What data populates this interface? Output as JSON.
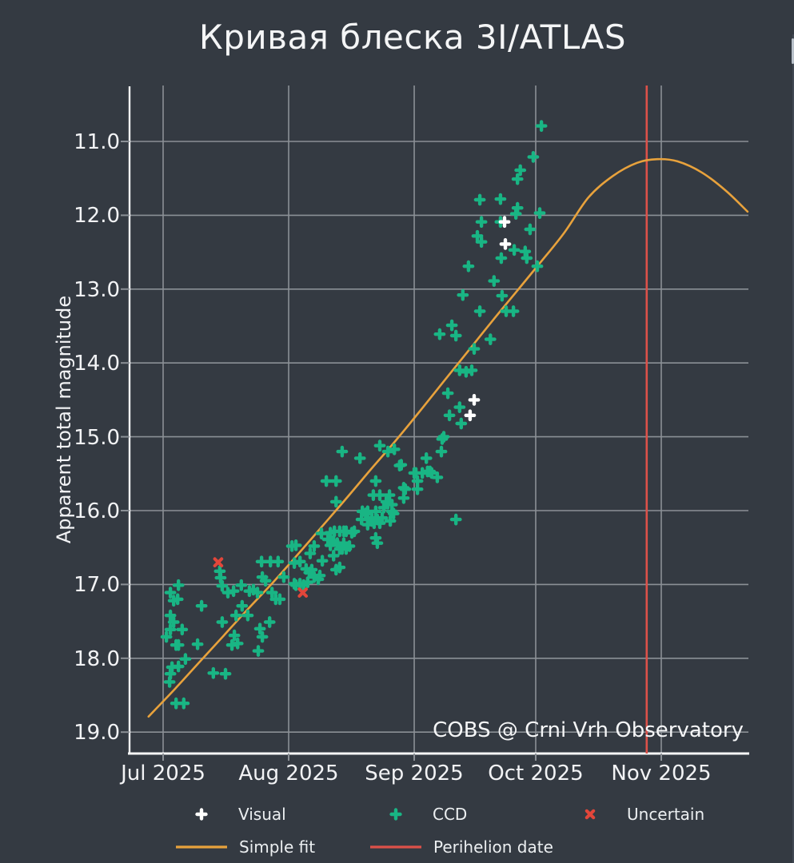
{
  "title": "Кривая блеска 3I/ATLAS",
  "annotation": "COBS @ Crni Vrh Observatory",
  "axes": {
    "y_label": "Apparent total magnitude",
    "y_ticks": [
      "11.0",
      "12.0",
      "13.0",
      "14.0",
      "15.0",
      "16.0",
      "17.0",
      "18.0",
      "19.0"
    ],
    "x_ticks": [
      "Jul 2025",
      "Aug 2025",
      "Sep 2025",
      "Oct 2025",
      "Nov 2025"
    ]
  },
  "legend": {
    "visual_label": "Visual",
    "ccd_label": "CCD",
    "uncertain_label": "Uncertain",
    "fit_label": "Simple fit",
    "perihelion_label": "Perihelion date"
  },
  "colors": {
    "background": "#343a42",
    "grid": "#8b9096",
    "spine": "#f5f6f7",
    "text": "#f2f3f5",
    "ccd": "#19b584",
    "visual": "#ffffff",
    "uncertain": "#e2463a",
    "fit": "#e8a23c",
    "perihelion": "#dd5149"
  },
  "chart_data": {
    "type": "scatter",
    "title": "Кривая блеска 3I/ATLAS",
    "xlabel": "",
    "ylabel": "Apparent total magnitude",
    "x_unit": "days since 2025-07-01",
    "x_tick_days": [
      0,
      31,
      62,
      92,
      123
    ],
    "x_tick_labels": [
      "Jul 2025",
      "Aug 2025",
      "Sep 2025",
      "Oct 2025",
      "Nov 2025"
    ],
    "xlim": [
      -8.3,
      144.5
    ],
    "ylim": [
      19.3,
      10.1
    ],
    "y_inverted": true,
    "grid": true,
    "legend_position": "bottom",
    "series": [
      {
        "name": "CCD",
        "type": "scatter",
        "marker": "plus",
        "color": "#19b584",
        "points": [
          [
            0.8,
            17.71
          ],
          [
            1.6,
            18.32
          ],
          [
            1.8,
            17.11
          ],
          [
            1.8,
            17.42
          ],
          [
            1.8,
            17.61
          ],
          [
            1.8,
            18.21
          ],
          [
            2.2,
            18.12
          ],
          [
            2.6,
            17.22
          ],
          [
            2.6,
            17.51
          ],
          [
            3.2,
            17.82
          ],
          [
            3.2,
            18.61
          ],
          [
            3.6,
            17.2
          ],
          [
            3.8,
            17.01
          ],
          [
            3.8,
            17.82
          ],
          [
            3.8,
            18.11
          ],
          [
            4.7,
            17.61
          ],
          [
            5.1,
            18.61
          ],
          [
            5.5,
            18.01
          ],
          [
            8.5,
            17.81
          ],
          [
            9.5,
            17.29
          ],
          [
            12.4,
            18.2
          ],
          [
            14.0,
            16.82
          ],
          [
            14.2,
            16.91
          ],
          [
            14.6,
            17.02
          ],
          [
            14.6,
            17.51
          ],
          [
            15.4,
            18.21
          ],
          [
            16.0,
            17.11
          ],
          [
            17.0,
            17.82
          ],
          [
            17.4,
            17.09
          ],
          [
            17.6,
            17.69
          ],
          [
            18.0,
            17.42
          ],
          [
            18.4,
            17.8
          ],
          [
            19.3,
            17.01
          ],
          [
            19.5,
            17.29
          ],
          [
            20.9,
            17.42
          ],
          [
            21.3,
            17.09
          ],
          [
            22.3,
            17.07
          ],
          [
            23.3,
            17.11
          ],
          [
            23.5,
            17.9
          ],
          [
            23.9,
            17.6
          ],
          [
            24.3,
            16.69
          ],
          [
            24.5,
            16.9
          ],
          [
            24.5,
            17.71
          ],
          [
            25.3,
            16.95
          ],
          [
            26.3,
            17.51
          ],
          [
            26.5,
            16.69
          ],
          [
            26.9,
            17.11
          ],
          [
            27.8,
            17.2
          ],
          [
            28.4,
            16.69
          ],
          [
            28.8,
            17.2
          ],
          [
            29.8,
            16.9
          ],
          [
            31.8,
            16.48
          ],
          [
            32.4,
            16.71
          ],
          [
            32.4,
            16.99
          ],
          [
            32.8,
            16.47
          ],
          [
            32.8,
            17.01
          ],
          [
            33.8,
            16.69
          ],
          [
            33.8,
            16.99
          ],
          [
            34.7,
            17.01
          ],
          [
            35.3,
            16.79
          ],
          [
            35.7,
            16.97
          ],
          [
            36.1,
            16.84
          ],
          [
            36.3,
            16.58
          ],
          [
            36.7,
            16.8
          ],
          [
            37.3,
            16.48
          ],
          [
            37.3,
            16.9
          ],
          [
            38.3,
            16.93
          ],
          [
            38.7,
            16.88
          ],
          [
            39.1,
            16.31
          ],
          [
            39.3,
            16.68
          ],
          [
            40.3,
            15.6
          ],
          [
            40.7,
            16.39
          ],
          [
            41.3,
            16.3
          ],
          [
            41.3,
            16.47
          ],
          [
            42.1,
            16.41
          ],
          [
            42.1,
            16.61
          ],
          [
            42.3,
            16.28
          ],
          [
            42.7,
            15.6
          ],
          [
            42.7,
            15.88
          ],
          [
            42.7,
            16.8
          ],
          [
            43.0,
            16.44
          ],
          [
            43.6,
            16.28
          ],
          [
            43.6,
            16.52
          ],
          [
            43.6,
            16.77
          ],
          [
            44.2,
            15.2
          ],
          [
            44.2,
            16.52
          ],
          [
            44.6,
            16.28
          ],
          [
            44.6,
            16.44
          ],
          [
            45.2,
            16.28
          ],
          [
            45.2,
            16.52
          ],
          [
            46.0,
            16.48
          ],
          [
            46.6,
            16.3
          ],
          [
            47.2,
            16.28
          ],
          [
            48.6,
            15.29
          ],
          [
            49.0,
            16.12
          ],
          [
            49.2,
            16.01
          ],
          [
            50.0,
            16.04
          ],
          [
            50.5,
            16.01
          ],
          [
            50.5,
            16.19
          ],
          [
            51.5,
            16.1
          ],
          [
            51.5,
            16.14
          ],
          [
            51.9,
            15.79
          ],
          [
            52.1,
            16.17
          ],
          [
            52.5,
            15.6
          ],
          [
            52.5,
            16.01
          ],
          [
            52.5,
            16.37
          ],
          [
            52.9,
            16.12
          ],
          [
            52.9,
            16.44
          ],
          [
            53.5,
            15.12
          ],
          [
            53.5,
            15.79
          ],
          [
            53.5,
            16.17
          ],
          [
            54.1,
            16.1
          ],
          [
            54.5,
            15.96
          ],
          [
            55.1,
            15.88
          ],
          [
            55.5,
            15.2
          ],
          [
            55.9,
            15.79
          ],
          [
            56.1,
            16.14
          ],
          [
            56.5,
            15.92
          ],
          [
            56.5,
            16.01
          ],
          [
            56.9,
            16.04
          ],
          [
            57.1,
            15.17
          ],
          [
            58.4,
            15.39
          ],
          [
            58.8,
            15.38
          ],
          [
            59.4,
            15.69
          ],
          [
            59.4,
            15.83
          ],
          [
            59.8,
            15.71
          ],
          [
            62.0,
            15.49
          ],
          [
            62.4,
            15.49
          ],
          [
            62.8,
            15.6
          ],
          [
            62.8,
            15.71
          ],
          [
            64.0,
            15.49
          ],
          [
            65.0,
            15.29
          ],
          [
            65.3,
            15.47
          ],
          [
            65.9,
            15.47
          ],
          [
            66.3,
            15.49
          ],
          [
            67.7,
            15.55
          ],
          [
            68.3,
            13.61
          ],
          [
            68.7,
            15.2
          ],
          [
            68.9,
            15.03
          ],
          [
            69.3,
            15.0
          ],
          [
            70.3,
            14.41
          ],
          [
            70.7,
            14.71
          ],
          [
            71.3,
            13.49
          ],
          [
            72.3,
            13.63
          ],
          [
            72.3,
            16.12
          ],
          [
            73.2,
            14.1
          ],
          [
            73.2,
            14.6
          ],
          [
            73.6,
            14.82
          ],
          [
            74.0,
            13.08
          ],
          [
            74.8,
            14.12
          ],
          [
            75.4,
            12.69
          ],
          [
            76.2,
            14.1
          ],
          [
            76.8,
            13.81
          ],
          [
            77.6,
            12.28
          ],
          [
            78.2,
            11.79
          ],
          [
            78.2,
            13.3
          ],
          [
            78.6,
            12.09
          ],
          [
            78.6,
            12.36
          ],
          [
            80.8,
            13.68
          ],
          [
            81.7,
            12.89
          ],
          [
            83.3,
            11.78
          ],
          [
            83.3,
            12.09
          ],
          [
            83.5,
            12.58
          ],
          [
            83.7,
            13.09
          ],
          [
            84.7,
            13.3
          ],
          [
            86.5,
            13.3
          ],
          [
            86.7,
            12.47
          ],
          [
            87.1,
            11.98
          ],
          [
            87.5,
            11.51
          ],
          [
            87.5,
            11.9
          ],
          [
            88.2,
            11.39
          ],
          [
            89.4,
            12.49
          ],
          [
            89.8,
            12.58
          ],
          [
            90.6,
            12.19
          ],
          [
            91.4,
            11.21
          ],
          [
            92.4,
            12.69
          ],
          [
            93.0,
            11.97
          ],
          [
            93.4,
            10.79
          ]
        ]
      },
      {
        "name": "Visual",
        "type": "scatter",
        "marker": "plus",
        "color": "#ffffff",
        "points": [
          [
            75.8,
            14.71
          ],
          [
            76.8,
            14.5
          ],
          [
            84.3,
            12.09
          ],
          [
            84.5,
            12.39
          ]
        ]
      },
      {
        "name": "Uncertain",
        "type": "scatter",
        "marker": "x",
        "color": "#e2463a",
        "points": [
          [
            13.6,
            16.7
          ],
          [
            34.5,
            17.11
          ]
        ]
      },
      {
        "name": "Simple fit",
        "type": "line",
        "color": "#e8a23c",
        "points": [
          [
            -3.6,
            18.79
          ],
          [
            3,
            18.41
          ],
          [
            9,
            18.05
          ],
          [
            15,
            17.69
          ],
          [
            21,
            17.33
          ],
          [
            27,
            16.98
          ],
          [
            33,
            16.61
          ],
          [
            39,
            16.23
          ],
          [
            45,
            15.85
          ],
          [
            51,
            15.46
          ],
          [
            57,
            15.08
          ],
          [
            63,
            14.68
          ],
          [
            69,
            14.27
          ],
          [
            75,
            13.86
          ],
          [
            81,
            13.45
          ],
          [
            87,
            13.05
          ],
          [
            93,
            12.65
          ],
          [
            99,
            12.24
          ],
          [
            105,
            11.76
          ],
          [
            111,
            11.47
          ],
          [
            117,
            11.29
          ],
          [
            122,
            11.24
          ],
          [
            127,
            11.27
          ],
          [
            133,
            11.42
          ],
          [
            139,
            11.67
          ],
          [
            144.3,
            11.95
          ]
        ]
      },
      {
        "name": "Perihelion date",
        "type": "vline",
        "color": "#dd5149",
        "x": 119.4
      }
    ]
  }
}
